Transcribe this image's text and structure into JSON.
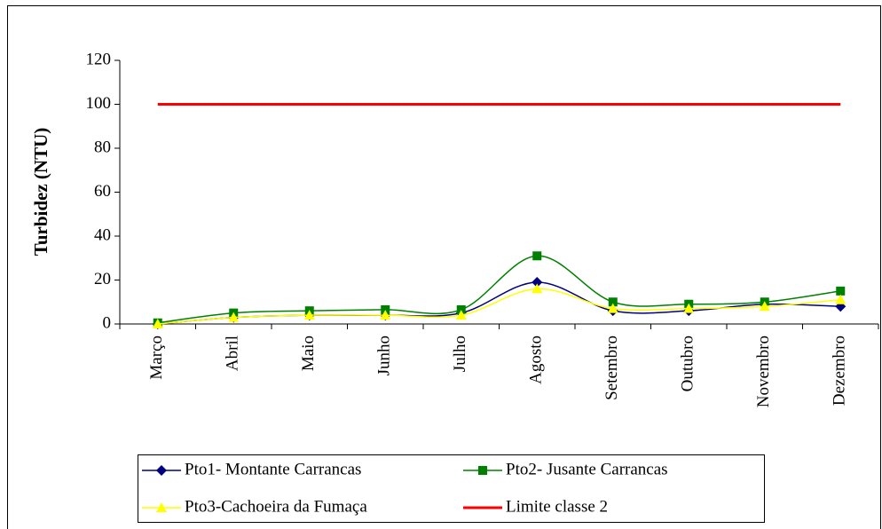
{
  "chart_data": {
    "type": "line",
    "y_label": "Turbidez (NTU)",
    "categories": [
      "Março",
      "Abril",
      "Maio",
      "Junho",
      "Julho",
      "Agosto",
      "Setembro",
      "Outubro",
      "Novembro",
      "Dezembro"
    ],
    "series": [
      {
        "name": "Pto1- Montante Carrancas",
        "color": "#000080",
        "marker": "diamond",
        "values": [
          0,
          3,
          4,
          4,
          5,
          19,
          6,
          6,
          9,
          8
        ]
      },
      {
        "name": "Pto2- Jusante Carrancas",
        "color": "#008000",
        "marker": "square",
        "values": [
          0.5,
          5,
          6,
          6.5,
          6.5,
          31,
          10,
          9,
          10,
          15
        ]
      },
      {
        "name": "Pto3-Cachoeira da Fumaça",
        "color": "#ffff00",
        "marker": "triangle",
        "values": [
          0,
          3,
          4,
          4,
          4,
          16,
          7,
          7,
          8,
          11
        ]
      },
      {
        "name": "Limite classe 2",
        "color": "#ff0000",
        "marker": "none",
        "values": [
          100,
          100,
          100,
          100,
          100,
          100,
          100,
          100,
          100,
          100
        ]
      }
    ],
    "ylim": [
      0,
      120
    ],
    "yticks": [
      0,
      20,
      40,
      60,
      80,
      100,
      120
    ],
    "grid": false,
    "smooth": true
  }
}
